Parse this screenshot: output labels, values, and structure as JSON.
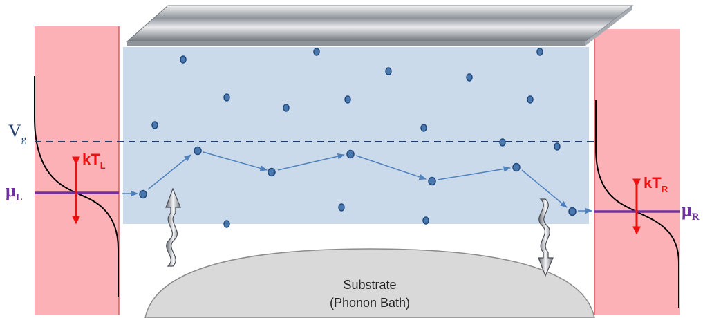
{
  "labels": {
    "gate_voltage": "V",
    "gate_voltage_sub": "g",
    "mu_left": "μ",
    "mu_left_sub": "L",
    "mu_right": "μ",
    "mu_right_sub": "R",
    "kT_left": "kT",
    "kT_left_sub": "L",
    "kT_right": "kT",
    "kT_right_sub": "R",
    "substrate_line1": "Substrate",
    "substrate_line2": "(Phonon Bath)"
  },
  "colors": {
    "contact": "#fbb1b5",
    "channel": "#cbdaeb",
    "dot": "#4a78ad",
    "dot_stroke": "#1f4a80",
    "path_arrow": "#4f81bd",
    "mu_line": "#7030a0",
    "kT_arrow": "#ee1111",
    "gate_dashed": "#1f3d6e",
    "substrate": "#d9d9d9",
    "fermi_curve": "#000000"
  }
}
